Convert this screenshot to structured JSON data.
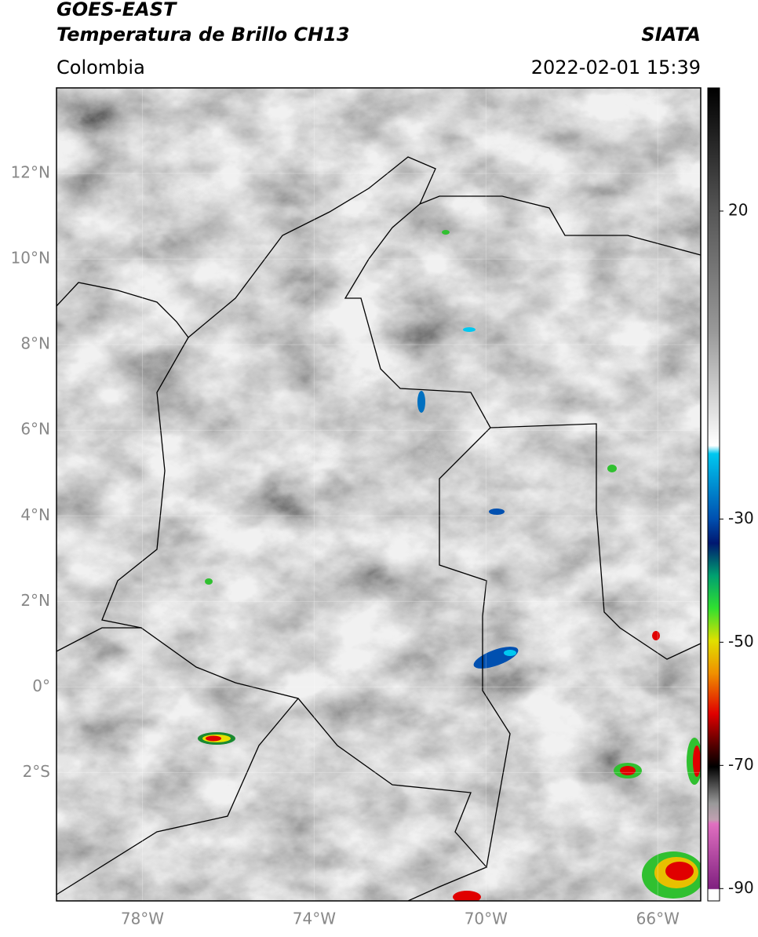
{
  "header": {
    "satellite": "GOES-EAST",
    "product": "Temperatura de Brillo CH13",
    "source": "SIATA",
    "region": "Colombia",
    "datetime": "2022-02-01 15:39"
  },
  "map": {
    "lonlim": [
      -80,
      -65
    ],
    "latlim": [
      -5,
      14
    ],
    "lat_ticks": [
      {
        "value": 12,
        "label": "12°N"
      },
      {
        "value": 10,
        "label": "10°N"
      },
      {
        "value": 8,
        "label": "8°N"
      },
      {
        "value": 6,
        "label": "6°N"
      },
      {
        "value": 4,
        "label": "4°N"
      },
      {
        "value": 2,
        "label": "2°N"
      },
      {
        "value": 0,
        "label": "0°"
      },
      {
        "value": -2,
        "label": "2°S"
      }
    ],
    "lon_ticks": [
      {
        "value": -78,
        "label": "78°W"
      },
      {
        "value": -74,
        "label": "74°W"
      },
      {
        "value": -70,
        "label": "70°W"
      },
      {
        "value": -66,
        "label": "66°W"
      }
    ]
  },
  "colorbar": {
    "lim": [
      -92,
      40
    ],
    "ticks": [
      20,
      -30,
      -50,
      -70,
      -90
    ]
  }
}
